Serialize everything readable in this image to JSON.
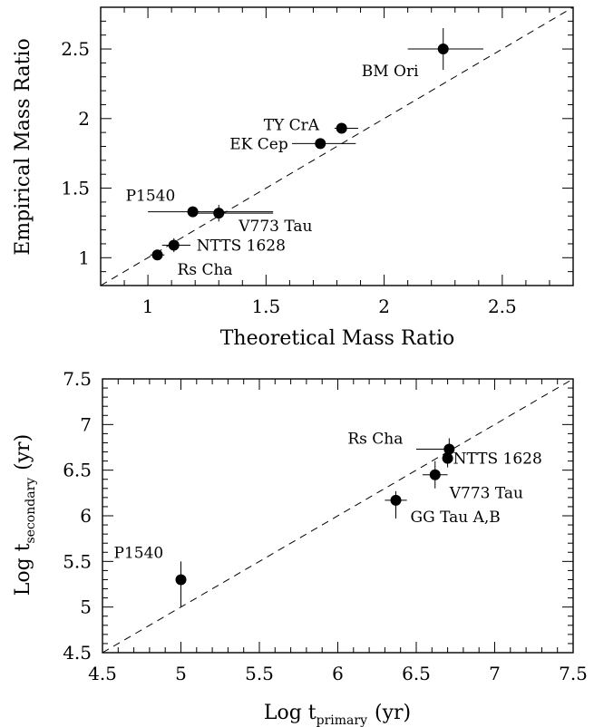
{
  "chart_data": [
    {
      "type": "scatter",
      "xlabel": "Theoretical Mass Ratio",
      "ylabel": "Empirical Mass Ratio",
      "xlim": [
        0.8,
        2.8
      ],
      "ylim": [
        0.8,
        2.8
      ],
      "x_ticks": [
        "1",
        "1.5",
        "2",
        "2.5"
      ],
      "y_ticks": [
        "1",
        "1.5",
        "2",
        "2.5"
      ],
      "reference_line": "y = x (dashed)",
      "points": [
        {
          "label": "BM Ori",
          "x": 2.25,
          "y": 2.5,
          "xerr": [
            0.15,
            0.17
          ],
          "yerr": [
            0.15,
            0.15
          ]
        },
        {
          "label": "TY CrA",
          "x": 1.82,
          "y": 1.93,
          "xerr": [
            0.03,
            0.07
          ],
          "yerr": [
            0.02,
            0.02
          ]
        },
        {
          "label": "EK Cep",
          "x": 1.73,
          "y": 1.82,
          "xerr": [
            0.12,
            0.15
          ],
          "yerr": [
            0.02,
            0.02
          ]
        },
        {
          "label": "P1540",
          "x": 1.19,
          "y": 1.33,
          "xerr": [
            0.19,
            0.34
          ],
          "yerr": [
            0.02,
            0.02
          ]
        },
        {
          "label": "V773 Tau",
          "x": 1.3,
          "y": 1.32,
          "xerr": [
            0.09,
            0.23
          ],
          "yerr": [
            0.06,
            0.06
          ]
        },
        {
          "label": "NTTS 1628",
          "x": 1.11,
          "y": 1.09,
          "xerr": [
            0.05,
            0.07
          ],
          "yerr": [
            0.05,
            0.05
          ]
        },
        {
          "label": "Rs Cha",
          "x": 1.04,
          "y": 1.02,
          "xerr": [
            0.03,
            0.03
          ],
          "yerr": [
            0.01,
            0.01
          ]
        }
      ]
    },
    {
      "type": "scatter",
      "xlabel": "Log t",
      "xlabel_sub": "primary",
      "xlabel_unit": "(yr)",
      "ylabel": "Log t",
      "ylabel_sub": "secondary",
      "ylabel_unit": "(yr)",
      "xlim": [
        4.5,
        7.5
      ],
      "ylim": [
        4.5,
        7.5
      ],
      "x_ticks": [
        "4.5",
        "5",
        "5.5",
        "6",
        "6.5",
        "7",
        "7.5"
      ],
      "y_ticks": [
        "4.5",
        "5",
        "5.5",
        "6",
        "6.5",
        "7",
        "7.5"
      ],
      "reference_line": "y = x (dashed)",
      "points": [
        {
          "label": "Rs Cha",
          "x": 6.71,
          "y": 6.73,
          "xerr": [
            0.21,
            0.0
          ],
          "yerr": [
            0.12,
            0.12
          ]
        },
        {
          "label": "NTTS 1628",
          "x": 6.7,
          "y": 6.63,
          "xerr": [
            0.0,
            0.0
          ],
          "yerr": [
            0.1,
            0.1
          ]
        },
        {
          "label": "V773 Tau",
          "x": 6.62,
          "y": 6.45,
          "xerr": [
            0.08,
            0.08
          ],
          "yerr": [
            0.15,
            0.15
          ]
        },
        {
          "label": "GG Tau A,B",
          "x": 6.37,
          "y": 6.17,
          "xerr": [
            0.07,
            0.07
          ],
          "yerr": [
            0.2,
            0.1
          ]
        },
        {
          "label": "P1540",
          "x": 5.0,
          "y": 5.3,
          "xerr": [
            0.0,
            0.0
          ],
          "yerr": [
            0.3,
            0.2
          ]
        }
      ]
    }
  ]
}
